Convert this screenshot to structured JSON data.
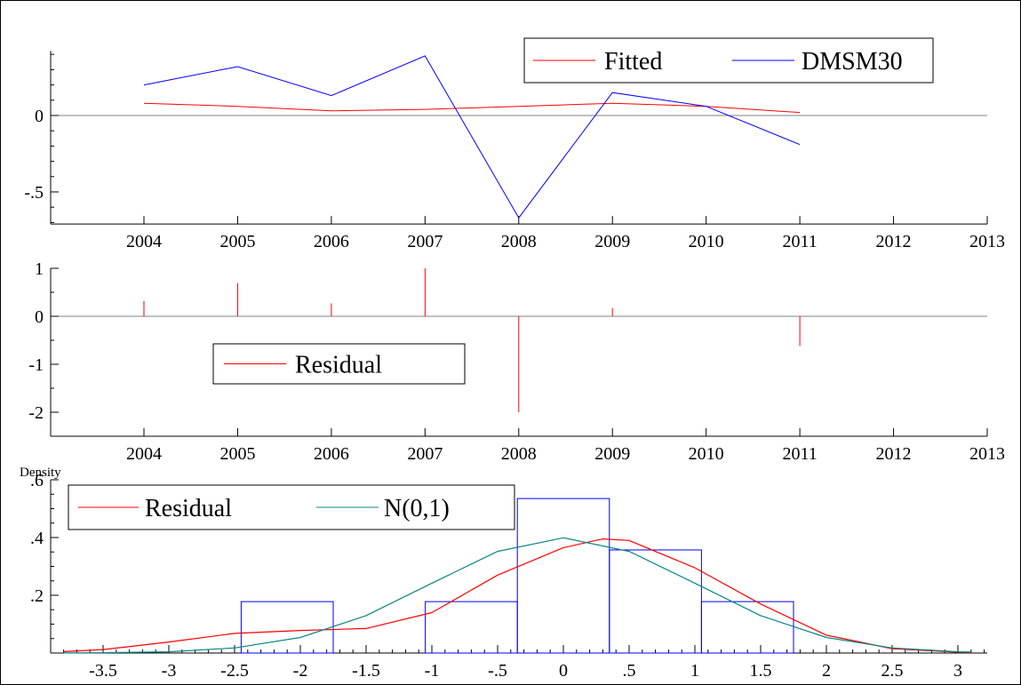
{
  "colors": {
    "fitted": "#ff0000",
    "actual": "#0000ff",
    "residual": "#ff0000",
    "normal": "#0b8585",
    "histogram": "#0000ff",
    "zero_line": "#808080",
    "axes": "#000000"
  },
  "chart_data": [
    {
      "type": "line",
      "x": [
        2004,
        2005,
        2006,
        2007,
        2008,
        2009,
        2010,
        2011
      ],
      "series": [
        {
          "name": "Fitted",
          "values": [
            0.08,
            0.06,
            0.03,
            0.04,
            0.06,
            0.08,
            0.06,
            0.02
          ]
        },
        {
          "name": "DMSM30",
          "values": [
            0.2,
            0.32,
            0.13,
            0.39,
            -0.67,
            0.15,
            0.06,
            -0.19
          ]
        }
      ],
      "xticks": [
        "2004",
        "2005",
        "2006",
        "2007",
        "2008",
        "2009",
        "2010",
        "2011",
        "2012",
        "2013"
      ],
      "yticks": [
        "-.5",
        "0"
      ],
      "xlim": [
        2003.0,
        2013.0
      ],
      "ylim": [
        -0.71,
        0.4
      ],
      "legend": "top-right",
      "grid": false
    },
    {
      "type": "bar",
      "x": [
        2004,
        2005,
        2006,
        2007,
        2008,
        2009,
        2011
      ],
      "series": [
        {
          "name": "Residual",
          "values": [
            0.32,
            0.69,
            0.27,
            1.0,
            -2.0,
            0.17,
            -0.62
          ]
        }
      ],
      "xticks": [
        "2004",
        "2005",
        "2006",
        "2007",
        "2008",
        "2009",
        "2010",
        "2011",
        "2012",
        "2013"
      ],
      "yticks": [
        "-2",
        "-1",
        "0",
        "1"
      ],
      "xlim": [
        2003.0,
        2013.0
      ],
      "ylim": [
        -2.5,
        1.0
      ],
      "legend": "center-left",
      "grid": false
    },
    {
      "type": "area",
      "title": "Density",
      "histogram": {
        "bins": [
          -2.45,
          -1.75,
          -1.05,
          -0.35,
          0.35,
          1.05,
          1.75
        ],
        "heights": [
          0.178,
          0.0,
          0.178,
          0.535,
          0.357,
          0.178
        ]
      },
      "series": [
        {
          "name": "Residual",
          "x": [
            -3.8,
            -3.5,
            -3.0,
            -2.5,
            -2.0,
            -1.5,
            -1.0,
            -0.5,
            0.0,
            0.3,
            0.5,
            1.0,
            1.5,
            2.0,
            2.5,
            3.0,
            3.1
          ],
          "values": [
            0.005,
            0.012,
            0.038,
            0.068,
            0.078,
            0.085,
            0.14,
            0.27,
            0.365,
            0.395,
            0.39,
            0.295,
            0.17,
            0.062,
            0.015,
            0.003,
            0.002
          ]
        },
        {
          "name": "N(0,1)",
          "x": [
            -3.8,
            -3.5,
            -3.0,
            -2.5,
            -2.0,
            -1.5,
            -1.0,
            -0.5,
            0.0,
            0.5,
            1.0,
            1.5,
            2.0,
            2.5,
            3.0,
            3.1
          ],
          "values": [
            0.0003,
            0.0009,
            0.0044,
            0.0175,
            0.054,
            0.1295,
            0.242,
            0.352,
            0.399,
            0.352,
            0.242,
            0.1295,
            0.054,
            0.0175,
            0.0044,
            0.0033
          ]
        }
      ],
      "xticks": [
        "-3.5",
        "-3",
        "-2.5",
        "-2",
        "-1.5",
        "-1",
        "-.5",
        "0",
        ".5",
        "1",
        "1.5",
        "2",
        "2.5",
        "3"
      ],
      "yticks": [
        ".2",
        ".4",
        ".6"
      ],
      "xlim": [
        -3.82,
        3.22
      ],
      "ylim": [
        0,
        0.6
      ],
      "legend": "top-left",
      "grid": false
    }
  ]
}
